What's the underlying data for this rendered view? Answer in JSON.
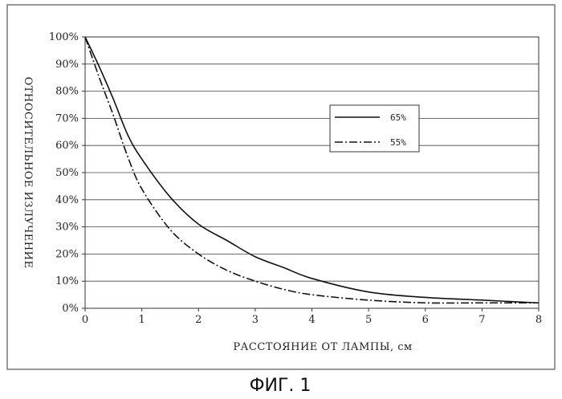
{
  "chart_data": {
    "type": "line",
    "title": "",
    "xlabel": "РАССТОЯНИЕ ОТ ЛАМПЫ, см",
    "ylabel": "ОТНОСИТЕЛЬНОЕ ИЗЛУЧЕНИЕ",
    "xlim": [
      0,
      8
    ],
    "ylim": [
      0,
      100
    ],
    "x_ticks": [
      0,
      1,
      2,
      3,
      4,
      5,
      6,
      7,
      8
    ],
    "y_ticks": [
      0,
      10,
      20,
      30,
      40,
      50,
      60,
      70,
      80,
      90,
      100
    ],
    "y_tick_labels": [
      "0%",
      "10%",
      "20%",
      "30%",
      "40%",
      "50%",
      "60%",
      "70%",
      "80%",
      "90%",
      "100%"
    ],
    "grid": "horizontal",
    "legend_position": "right",
    "series": [
      {
        "name": "65%",
        "style": "solid",
        "x": [
          0,
          0.25,
          0.5,
          0.75,
          1,
          1.5,
          2,
          2.5,
          3,
          3.5,
          4,
          5,
          6,
          7,
          8
        ],
        "y": [
          100,
          89,
          77,
          64,
          55,
          41,
          31,
          25,
          19,
          15,
          11,
          6,
          4,
          3,
          2
        ]
      },
      {
        "name": "55%",
        "style": "dash-dot",
        "x": [
          0,
          0.25,
          0.5,
          0.75,
          1,
          1.5,
          2,
          2.5,
          3,
          3.5,
          4,
          5,
          6,
          7,
          8
        ],
        "y": [
          100,
          85,
          71,
          56,
          44,
          29,
          20,
          14,
          10,
          7,
          5,
          3,
          2,
          2,
          2
        ]
      }
    ]
  },
  "caption": "ФИГ. 1"
}
